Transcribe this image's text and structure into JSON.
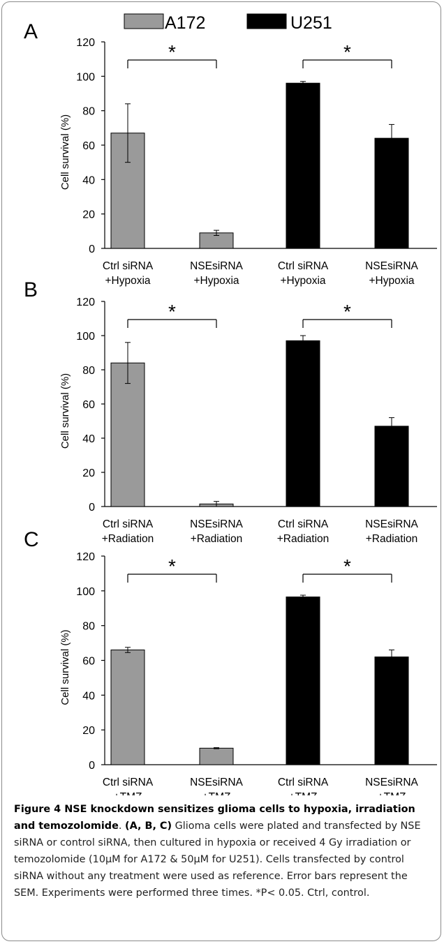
{
  "legend": [
    {
      "name": "A172",
      "color": "#9a9a9a"
    },
    {
      "name": "U251",
      "color": "#000000"
    }
  ],
  "chart_data": [
    {
      "panel": "A",
      "type": "bar",
      "ylabel": "Cell survival (%)",
      "ylim": [
        0,
        120
      ],
      "yticks": [
        0,
        20,
        40,
        60,
        80,
        100,
        120
      ],
      "categories": [
        [
          "Ctrl siRNA",
          "+Hypoxia"
        ],
        [
          "NSEsiRNA",
          "+Hypoxia"
        ],
        [
          "Ctrl siRNA",
          "+Hypoxia"
        ],
        [
          "NSEsiRNA",
          "+Hypoxia"
        ]
      ],
      "series_of_bar": [
        "A172",
        "A172",
        "U251",
        "U251"
      ],
      "values": [
        67,
        9,
        96,
        64
      ],
      "errors": [
        17,
        1.5,
        1,
        8
      ],
      "significance": [
        {
          "from": 0,
          "to": 1,
          "label": "*"
        },
        {
          "from": 2,
          "to": 3,
          "label": "*"
        }
      ]
    },
    {
      "panel": "B",
      "type": "bar",
      "ylabel": "Cell survival (%)",
      "ylim": [
        0,
        120
      ],
      "yticks": [
        0,
        20,
        40,
        60,
        80,
        100,
        120
      ],
      "categories": [
        [
          "Ctrl siRNA",
          "+Radiation"
        ],
        [
          "NSEsiRNA",
          "+Radiation"
        ],
        [
          "Ctrl siRNA",
          "+Radiation"
        ],
        [
          "NSEsiRNA",
          "+Radiation"
        ]
      ],
      "series_of_bar": [
        "A172",
        "A172",
        "U251",
        "U251"
      ],
      "values": [
        84,
        1.5,
        97,
        47
      ],
      "errors": [
        12,
        1.5,
        3,
        5
      ],
      "significance": [
        {
          "from": 0,
          "to": 1,
          "label": "*"
        },
        {
          "from": 2,
          "to": 3,
          "label": "*"
        }
      ]
    },
    {
      "panel": "C",
      "type": "bar",
      "ylabel": "Cell survival (%)",
      "ylim": [
        0,
        120
      ],
      "yticks": [
        0,
        20,
        40,
        60,
        80,
        100,
        120
      ],
      "categories": [
        [
          "Ctrl siRNA",
          "+TMZ"
        ],
        [
          "NSEsiRNA",
          "+TMZ"
        ],
        [
          "Ctrl siRNA",
          "+TMZ"
        ],
        [
          "NSEsiRNA",
          "+TMZ"
        ]
      ],
      "series_of_bar": [
        "A172",
        "A172",
        "U251",
        "U251"
      ],
      "values": [
        66,
        9.5,
        96.5,
        62
      ],
      "errors": [
        1.5,
        0.3,
        1,
        4
      ],
      "significance": [
        {
          "from": 0,
          "to": 1,
          "label": "*"
        },
        {
          "from": 2,
          "to": 3,
          "label": "*"
        }
      ]
    }
  ],
  "caption": {
    "title": "Figure 4 NSE knockdown sensitizes glioma cells to hypoxia, irradiation and temozolomide",
    "panels_ref": "(A, B, C)",
    "body": " Glioma cells were plated and transfected by NSE siRNA or control siRNA, then cultured in hypoxia or received 4 Gy irradiation or temozolomide (10μM for A172 & 50μM for U251). Cells transfected by control siRNA without any treatment were used as reference. Error bars represent the SEM. Experiments were performed three times. *P< 0.05. Ctrl, control."
  }
}
